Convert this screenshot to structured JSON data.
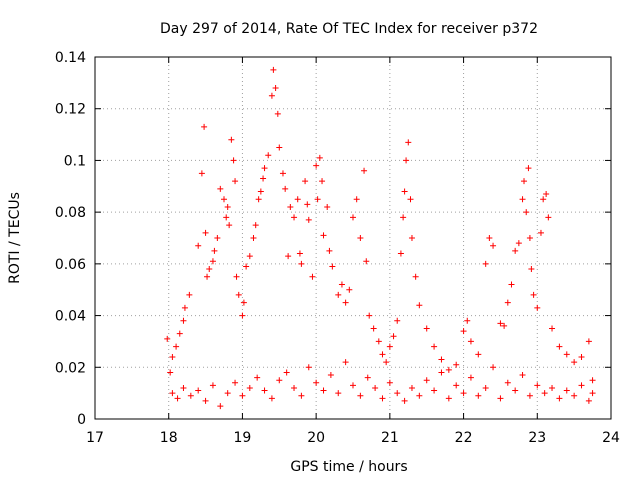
{
  "chart_data": {
    "type": "scatter",
    "title": "Day 297 of 2014, Rate Of TEC Index for receiver p372",
    "xlabel": "GPS time / hours",
    "ylabel": "ROTI / TECUs",
    "xlim": [
      17,
      24
    ],
    "ylim": [
      0,
      0.14
    ],
    "x_ticks": [
      "17",
      "18",
      "19",
      "20",
      "21",
      "22",
      "23",
      "24"
    ],
    "y_ticks": [
      "0",
      "0.02",
      "0.04",
      "0.06",
      "0.08",
      "0.1",
      "0.12",
      "0.14"
    ],
    "grid": true,
    "marker": "+",
    "series": [
      {
        "name": "ROTI",
        "color": "#ff0000",
        "points": [
          [
            17.98,
            0.031
          ],
          [
            18.02,
            0.018
          ],
          [
            18.05,
            0.024
          ],
          [
            18.1,
            0.028
          ],
          [
            18.15,
            0.033
          ],
          [
            18.2,
            0.038
          ],
          [
            18.22,
            0.043
          ],
          [
            18.28,
            0.048
          ],
          [
            18.4,
            0.067
          ],
          [
            18.45,
            0.095
          ],
          [
            18.48,
            0.113
          ],
          [
            18.5,
            0.072
          ],
          [
            18.52,
            0.055
          ],
          [
            18.55,
            0.058
          ],
          [
            18.6,
            0.061
          ],
          [
            18.62,
            0.065
          ],
          [
            18.66,
            0.07
          ],
          [
            18.7,
            0.089
          ],
          [
            18.75,
            0.085
          ],
          [
            18.78,
            0.078
          ],
          [
            18.8,
            0.082
          ],
          [
            18.82,
            0.075
          ],
          [
            18.85,
            0.108
          ],
          [
            18.88,
            0.1
          ],
          [
            18.9,
            0.092
          ],
          [
            18.92,
            0.055
          ],
          [
            18.95,
            0.048
          ],
          [
            19.0,
            0.04
          ],
          [
            19.02,
            0.045
          ],
          [
            19.05,
            0.059
          ],
          [
            19.1,
            0.063
          ],
          [
            19.15,
            0.07
          ],
          [
            19.18,
            0.075
          ],
          [
            19.22,
            0.085
          ],
          [
            19.25,
            0.088
          ],
          [
            19.28,
            0.093
          ],
          [
            19.3,
            0.097
          ],
          [
            19.35,
            0.102
          ],
          [
            19.4,
            0.125
          ],
          [
            19.42,
            0.135
          ],
          [
            19.45,
            0.128
          ],
          [
            19.48,
            0.118
          ],
          [
            19.5,
            0.105
          ],
          [
            19.55,
            0.095
          ],
          [
            19.58,
            0.089
          ],
          [
            19.62,
            0.063
          ],
          [
            19.65,
            0.082
          ],
          [
            19.7,
            0.078
          ],
          [
            19.75,
            0.085
          ],
          [
            19.78,
            0.064
          ],
          [
            19.8,
            0.06
          ],
          [
            19.85,
            0.092
          ],
          [
            19.88,
            0.083
          ],
          [
            19.9,
            0.077
          ],
          [
            19.95,
            0.055
          ],
          [
            20.0,
            0.098
          ],
          [
            20.02,
            0.085
          ],
          [
            20.05,
            0.101
          ],
          [
            20.08,
            0.092
          ],
          [
            20.1,
            0.071
          ],
          [
            20.15,
            0.082
          ],
          [
            20.18,
            0.065
          ],
          [
            20.22,
            0.059
          ],
          [
            20.3,
            0.048
          ],
          [
            20.35,
            0.052
          ],
          [
            20.4,
            0.045
          ],
          [
            20.45,
            0.05
          ],
          [
            20.5,
            0.078
          ],
          [
            20.55,
            0.085
          ],
          [
            20.6,
            0.07
          ],
          [
            20.65,
            0.096
          ],
          [
            20.68,
            0.061
          ],
          [
            20.72,
            0.04
          ],
          [
            20.78,
            0.035
          ],
          [
            20.85,
            0.03
          ],
          [
            20.9,
            0.025
          ],
          [
            20.95,
            0.022
          ],
          [
            21.0,
            0.028
          ],
          [
            21.05,
            0.032
          ],
          [
            21.1,
            0.038
          ],
          [
            21.15,
            0.064
          ],
          [
            21.18,
            0.078
          ],
          [
            21.2,
            0.088
          ],
          [
            21.22,
            0.1
          ],
          [
            21.25,
            0.107
          ],
          [
            21.28,
            0.085
          ],
          [
            21.3,
            0.07
          ],
          [
            21.35,
            0.055
          ],
          [
            21.4,
            0.044
          ],
          [
            21.5,
            0.035
          ],
          [
            21.6,
            0.028
          ],
          [
            21.7,
            0.023
          ],
          [
            21.8,
            0.019
          ],
          [
            21.9,
            0.021
          ],
          [
            22.0,
            0.034
          ],
          [
            22.05,
            0.038
          ],
          [
            22.1,
            0.03
          ],
          [
            22.2,
            0.025
          ],
          [
            22.3,
            0.06
          ],
          [
            22.35,
            0.07
          ],
          [
            22.4,
            0.067
          ],
          [
            22.5,
            0.037
          ],
          [
            22.55,
            0.036
          ],
          [
            22.6,
            0.045
          ],
          [
            22.65,
            0.052
          ],
          [
            22.7,
            0.065
          ],
          [
            22.75,
            0.068
          ],
          [
            22.8,
            0.085
          ],
          [
            22.82,
            0.092
          ],
          [
            22.85,
            0.08
          ],
          [
            22.88,
            0.097
          ],
          [
            22.9,
            0.07
          ],
          [
            22.92,
            0.058
          ],
          [
            22.95,
            0.048
          ],
          [
            23.0,
            0.043
          ],
          [
            23.05,
            0.072
          ],
          [
            23.08,
            0.085
          ],
          [
            23.12,
            0.087
          ],
          [
            23.15,
            0.078
          ],
          [
            23.2,
            0.035
          ],
          [
            23.3,
            0.028
          ],
          [
            23.4,
            0.025
          ],
          [
            23.5,
            0.022
          ],
          [
            23.6,
            0.024
          ],
          [
            23.7,
            0.03
          ],
          [
            23.75,
            0.015
          ],
          [
            18.05,
            0.01
          ],
          [
            18.12,
            0.008
          ],
          [
            18.2,
            0.012
          ],
          [
            18.3,
            0.009
          ],
          [
            18.4,
            0.011
          ],
          [
            18.5,
            0.007
          ],
          [
            18.6,
            0.013
          ],
          [
            18.7,
            0.005
          ],
          [
            18.8,
            0.01
          ],
          [
            18.9,
            0.014
          ],
          [
            19.0,
            0.009
          ],
          [
            19.1,
            0.012
          ],
          [
            19.2,
            0.016
          ],
          [
            19.3,
            0.011
          ],
          [
            19.4,
            0.008
          ],
          [
            19.5,
            0.015
          ],
          [
            19.6,
            0.018
          ],
          [
            19.7,
            0.012
          ],
          [
            19.8,
            0.009
          ],
          [
            19.9,
            0.02
          ],
          [
            20.0,
            0.014
          ],
          [
            20.1,
            0.011
          ],
          [
            20.2,
            0.017
          ],
          [
            20.3,
            0.01
          ],
          [
            20.4,
            0.022
          ],
          [
            20.5,
            0.013
          ],
          [
            20.6,
            0.009
          ],
          [
            20.7,
            0.016
          ],
          [
            20.8,
            0.012
          ],
          [
            20.9,
            0.008
          ],
          [
            21.0,
            0.014
          ],
          [
            21.1,
            0.01
          ],
          [
            21.2,
            0.007
          ],
          [
            21.3,
            0.012
          ],
          [
            21.4,
            0.009
          ],
          [
            21.5,
            0.015
          ],
          [
            21.6,
            0.011
          ],
          [
            21.7,
            0.018
          ],
          [
            21.8,
            0.008
          ],
          [
            21.9,
            0.013
          ],
          [
            22.0,
            0.01
          ],
          [
            22.1,
            0.016
          ],
          [
            22.2,
            0.009
          ],
          [
            22.3,
            0.012
          ],
          [
            22.4,
            0.02
          ],
          [
            22.5,
            0.008
          ],
          [
            22.6,
            0.014
          ],
          [
            22.7,
            0.011
          ],
          [
            22.8,
            0.017
          ],
          [
            22.9,
            0.009
          ],
          [
            23.0,
            0.013
          ],
          [
            23.1,
            0.01
          ],
          [
            23.2,
            0.012
          ],
          [
            23.3,
            0.008
          ],
          [
            23.4,
            0.011
          ],
          [
            23.5,
            0.009
          ],
          [
            23.6,
            0.013
          ],
          [
            23.7,
            0.007
          ],
          [
            23.75,
            0.01
          ]
        ]
      }
    ]
  }
}
